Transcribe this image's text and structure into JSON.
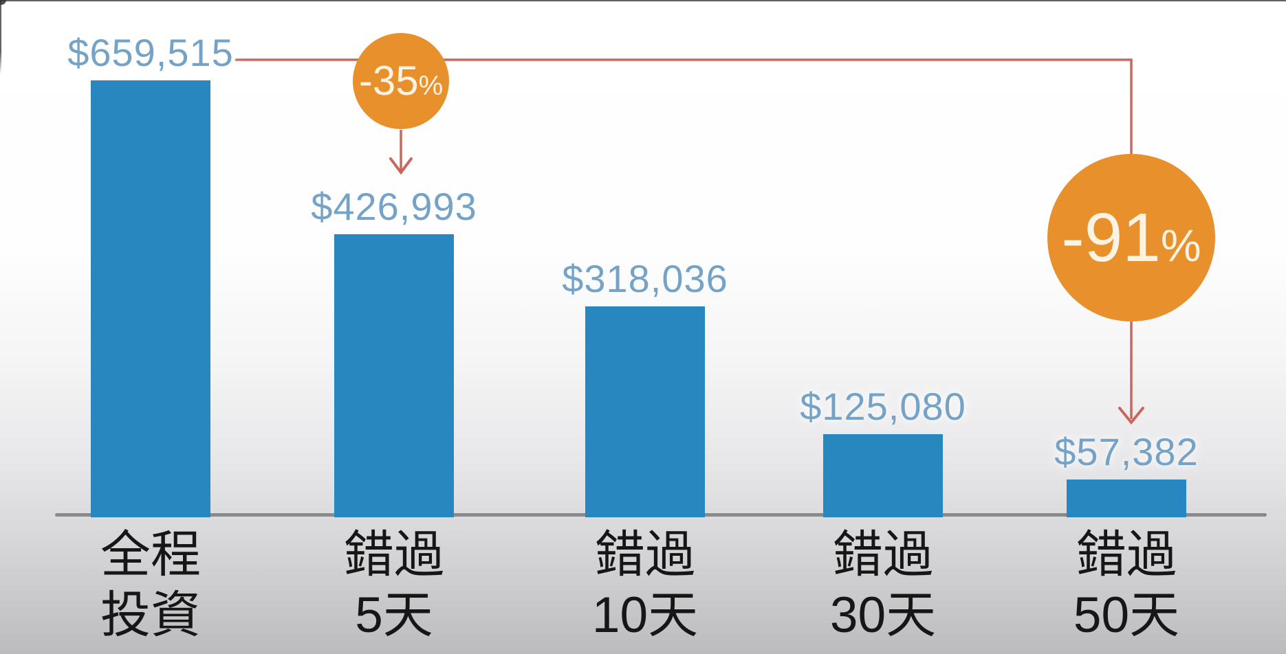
{
  "chart_data": {
    "type": "bar",
    "title": "",
    "categories": [
      "全程投資",
      "錯過5天",
      "錯過10天",
      "錯過30天",
      "錯過50天"
    ],
    "bars": [
      {
        "label_line1": "全程",
        "label_line2": "投資",
        "value": 659515,
        "value_label": "$659,515"
      },
      {
        "label_line1": "錯過",
        "label_line2": "5天",
        "value": 426993,
        "value_label": "$426,993"
      },
      {
        "label_line1": "錯過",
        "label_line2": "10天",
        "value": 318036,
        "value_label": "$318,036"
      },
      {
        "label_line1": "錯過",
        "label_line2": "30天",
        "value": 125080,
        "value_label": "$125,080"
      },
      {
        "label_line1": "錯過",
        "label_line2": "50天",
        "value": 57382,
        "value_label": "$57,382"
      }
    ],
    "y_max": 659515,
    "ylim": [
      0,
      659515
    ],
    "grid": false,
    "legend": "none",
    "annotations": [
      {
        "number": "-35",
        "percent_sign": "%",
        "full_text": "-35%",
        "meaning": "drop from $659,515 to $426,993"
      },
      {
        "number": "-91",
        "percent_sign": "%",
        "full_text": "-91%",
        "meaning": "drop from $659,515 to $57,382"
      }
    ],
    "colors": {
      "bar": "#2787be",
      "value_label": "#74a3c7",
      "annotation_circle": "#e8912c",
      "annotation_circle_text": "#fdf3e2",
      "annotation_line": "#c4584f",
      "axis_line": "#8a8a8d",
      "category_text": "#161616",
      "background_top": "#ffffff",
      "background_bottom": "#bcbcbe"
    }
  }
}
